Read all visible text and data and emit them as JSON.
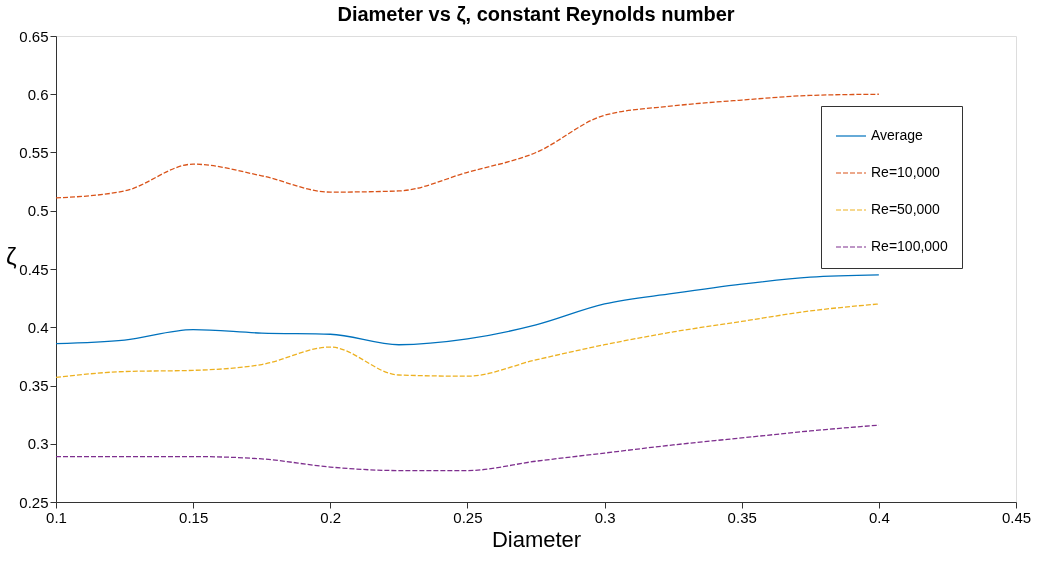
{
  "chart_data": {
    "type": "line",
    "title": "Diameter vs ζ, constant Reynolds number",
    "xlabel": "Diameter",
    "ylabel": "ζ",
    "x": [
      0.1,
      0.125,
      0.15,
      0.175,
      0.2,
      0.225,
      0.25,
      0.275,
      0.3,
      0.325,
      0.35,
      0.375,
      0.4
    ],
    "xlim": [
      0.1,
      0.45
    ],
    "xticks": [
      0.1,
      0.15,
      0.2,
      0.25,
      0.3,
      0.35,
      0.4,
      0.45
    ],
    "ylim": [
      0.25,
      0.65
    ],
    "yticks": [
      0.25,
      0.3,
      0.35,
      0.4,
      0.45,
      0.5,
      0.55,
      0.6,
      0.65
    ],
    "legend": "top right",
    "series": [
      {
        "name": "Average",
        "color": "#0072bd",
        "line_style": "solid",
        "values": [
          0.386,
          0.389,
          0.398,
          0.395,
          0.394,
          0.385,
          0.39,
          0.402,
          0.42,
          0.429,
          0.437,
          0.443,
          0.445
        ]
      },
      {
        "name": "Re=10,000",
        "color": "#d95319",
        "line_style": "dashed",
        "values": [
          0.511,
          0.517,
          0.54,
          0.53,
          0.516,
          0.517,
          0.533,
          0.55,
          0.582,
          0.59,
          0.595,
          0.599,
          0.6
        ]
      },
      {
        "name": "Re=50,000",
        "color": "#edb120",
        "line_style": "dashed",
        "values": [
          0.357,
          0.362,
          0.363,
          0.368,
          0.383,
          0.359,
          0.358,
          0.372,
          0.385,
          0.396,
          0.405,
          0.414,
          0.42
        ]
      },
      {
        "name": "Re=100,000",
        "color": "#7e2f8e",
        "line_style": "dashed",
        "values": [
          0.289,
          0.289,
          0.289,
          0.287,
          0.28,
          0.277,
          0.277,
          0.285,
          0.292,
          0.299,
          0.305,
          0.311,
          0.316
        ]
      }
    ]
  }
}
